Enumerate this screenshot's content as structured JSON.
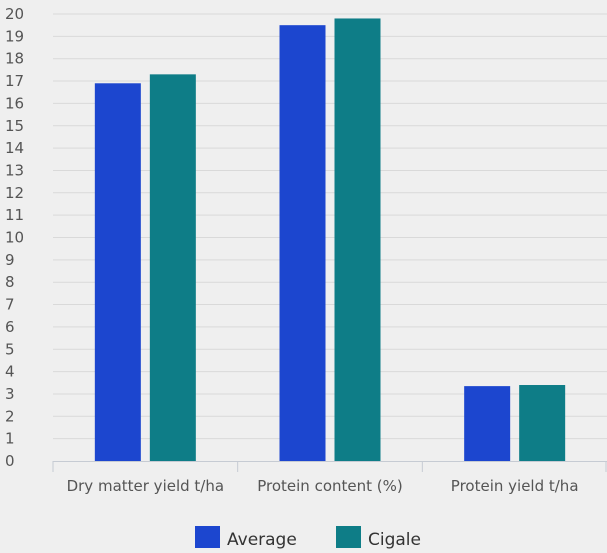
{
  "chart_data": {
    "type": "bar",
    "categories": [
      "Dry matter yield t/ha",
      "Protein content (%)",
      "Protein yield t/ha"
    ],
    "series": [
      {
        "name": "Average",
        "values": [
          16.9,
          19.5,
          3.35
        ],
        "color": "#1c46cf"
      },
      {
        "name": "Cigale",
        "values": [
          17.3,
          19.8,
          3.4
        ],
        "color": "#0e7d87"
      }
    ],
    "ylim": [
      0,
      20
    ],
    "yticks": [
      0,
      1,
      2,
      3,
      4,
      5,
      6,
      7,
      8,
      9,
      10,
      11,
      12,
      13,
      14,
      15,
      16,
      17,
      18,
      19,
      20
    ],
    "grid": true,
    "legend_position": "bottom-center",
    "title": "",
    "xlabel": "",
    "ylabel": ""
  }
}
